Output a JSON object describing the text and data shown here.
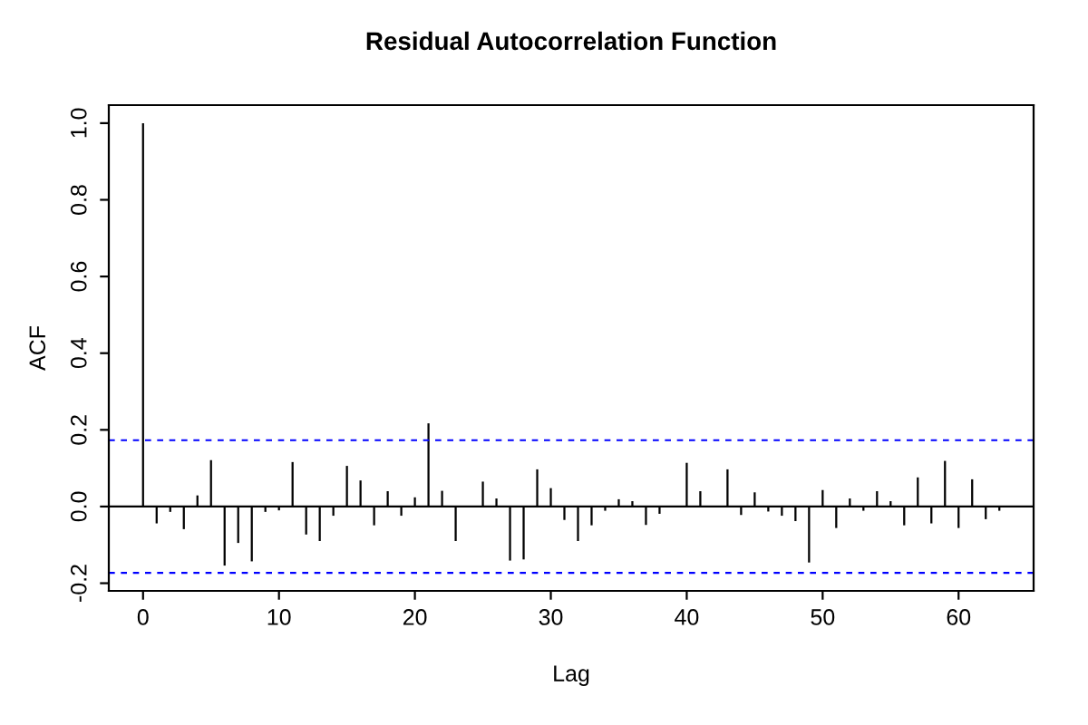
{
  "chart_data": {
    "type": "bar",
    "title": "Residual Autocorrelation Function",
    "xlabel": "Lag",
    "ylabel": "ACF",
    "x": [
      0,
      1,
      2,
      3,
      4,
      5,
      6,
      7,
      8,
      9,
      10,
      11,
      12,
      13,
      14,
      15,
      16,
      17,
      18,
      19,
      20,
      21,
      22,
      23,
      24,
      25,
      26,
      27,
      28,
      29,
      30,
      31,
      32,
      33,
      34,
      35,
      36,
      37,
      38,
      39,
      40,
      41,
      42,
      43,
      44,
      45,
      46,
      47,
      48,
      49,
      50,
      51,
      52,
      53,
      54,
      55,
      56,
      57,
      58,
      59,
      60,
      61,
      62,
      63
    ],
    "values": [
      1.0,
      -0.044,
      -0.014,
      -0.059,
      0.029,
      0.121,
      -0.154,
      -0.095,
      -0.143,
      -0.014,
      -0.01,
      0.116,
      -0.073,
      -0.09,
      -0.024,
      0.106,
      0.068,
      -0.049,
      0.04,
      -0.024,
      0.024,
      0.217,
      0.041,
      -0.09,
      null,
      0.065,
      0.021,
      -0.141,
      -0.138,
      0.097,
      0.048,
      -0.035,
      -0.09,
      -0.049,
      -0.011,
      0.019,
      0.014,
      -0.048,
      -0.019,
      0.002,
      0.114,
      0.04,
      null,
      0.097,
      -0.022,
      0.037,
      -0.013,
      -0.024,
      -0.038,
      -0.146,
      0.043,
      -0.056,
      0.021,
      -0.011,
      0.04,
      0.014,
      -0.049,
      0.076,
      -0.044,
      0.119,
      -0.056,
      0.071,
      -0.033,
      -0.011
    ],
    "color": "#000000",
    "xlim": [
      -2.52,
      65.52
    ],
    "ylim": [
      -0.22,
      1.047
    ],
    "xticks": [
      0,
      10,
      20,
      30,
      40,
      50,
      60
    ],
    "yticks": [
      -0.2,
      {
        "value": 0,
        "label": "0.0"
      },
      0.2,
      0.4,
      0.6,
      0.8,
      {
        "value": 1,
        "label": "1.0"
      }
    ],
    "ref_lines": [
      {
        "axis": "y",
        "value": 0,
        "color": "#000000",
        "line_style": "solid"
      },
      {
        "axis": "y",
        "value": 0.173,
        "color": "#0000ff",
        "line_style": "dashed"
      },
      {
        "axis": "y",
        "value": -0.173,
        "color": "#0000ff",
        "line_style": "dashed"
      }
    ],
    "grid": false,
    "legend": false
  }
}
